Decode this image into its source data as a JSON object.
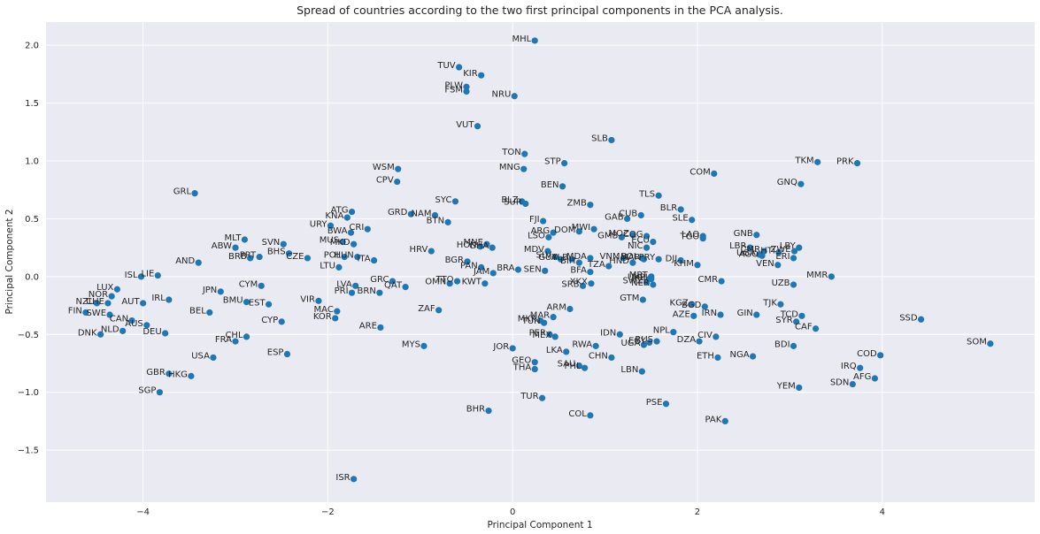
{
  "chart_data": {
    "type": "scatter",
    "title": "Spread of countries according to the two first principal components in the PCA analysis.",
    "xlabel": "Principal Component 1",
    "ylabel": "Principal Component 2",
    "xlim": [
      -5.05,
      5.65
    ],
    "ylim": [
      -1.95,
      2.2
    ],
    "xticks": [
      -4,
      -2,
      0,
      2,
      4
    ],
    "yticks": [
      -1.5,
      -1.0,
      -0.5,
      0.0,
      0.5,
      1.0,
      1.5,
      2.0
    ],
    "xtick_labels": [
      "−4",
      "−2",
      "0",
      "2",
      "4"
    ],
    "ytick_labels": [
      "−1.5",
      "−1.0",
      "−0.5",
      "0.0",
      "0.5",
      "1.0",
      "1.5",
      "2.0"
    ],
    "grid": true,
    "colors": {
      "background": "#eaeaf2",
      "grid": "#ffffff",
      "marker": "#1f77b4",
      "text": "#262626"
    },
    "points": [
      {
        "label": "MHL",
        "x": 0.24,
        "y": 2.04
      },
      {
        "label": "TUV",
        "x": -0.58,
        "y": 1.81
      },
      {
        "label": "KIR",
        "x": -0.34,
        "y": 1.74
      },
      {
        "label": "PLW",
        "x": -0.5,
        "y": 1.64
      },
      {
        "label": "FSM",
        "x": -0.5,
        "y": 1.6
      },
      {
        "label": "NRU",
        "x": 0.02,
        "y": 1.56
      },
      {
        "label": "VUT",
        "x": -0.38,
        "y": 1.3
      },
      {
        "label": "SLB",
        "x": 1.07,
        "y": 1.18
      },
      {
        "label": "TON",
        "x": 0.13,
        "y": 1.06
      },
      {
        "label": "STP",
        "x": 0.56,
        "y": 0.98
      },
      {
        "label": "MNG",
        "x": 0.12,
        "y": 0.93
      },
      {
        "label": "BEN",
        "x": 0.54,
        "y": 0.78
      },
      {
        "label": "WSM",
        "x": -1.24,
        "y": 0.93
      },
      {
        "label": "CPV",
        "x": -1.25,
        "y": 0.82
      },
      {
        "label": "GRL",
        "x": -3.44,
        "y": 0.72
      },
      {
        "label": "TKM",
        "x": 3.3,
        "y": 0.99
      },
      {
        "label": "PRK",
        "x": 3.73,
        "y": 0.98
      },
      {
        "label": "COM",
        "x": 2.18,
        "y": 0.89
      },
      {
        "label": "GNQ",
        "x": 3.12,
        "y": 0.8
      },
      {
        "label": "TLS",
        "x": 1.58,
        "y": 0.7
      },
      {
        "label": "BLR",
        "x": 1.82,
        "y": 0.58
      },
      {
        "label": "SLE",
        "x": 1.94,
        "y": 0.49
      },
      {
        "label": "CUB",
        "x": 1.39,
        "y": 0.53
      },
      {
        "label": "GAB",
        "x": 1.24,
        "y": 0.5
      },
      {
        "label": "ZMB",
        "x": 0.84,
        "y": 0.62
      },
      {
        "label": "SYC",
        "x": -0.62,
        "y": 0.65
      },
      {
        "label": "BLZ",
        "x": 0.1,
        "y": 0.65
      },
      {
        "label": "SUR",
        "x": 0.14,
        "y": 0.63
      },
      {
        "label": "GRD",
        "x": -1.1,
        "y": 0.54
      },
      {
        "label": "NAM",
        "x": -0.84,
        "y": 0.53
      },
      {
        "label": "BTN",
        "x": -0.7,
        "y": 0.47
      },
      {
        "label": "FJI",
        "x": 0.33,
        "y": 0.48
      },
      {
        "label": "MWI",
        "x": 0.88,
        "y": 0.41
      },
      {
        "label": "DOM",
        "x": 0.72,
        "y": 0.39
      },
      {
        "label": "ARG",
        "x": 0.44,
        "y": 0.38
      },
      {
        "label": "LSO",
        "x": 0.39,
        "y": 0.34
      },
      {
        "label": "MOZ",
        "x": 1.3,
        "y": 0.36
      },
      {
        "label": "COG",
        "x": 1.45,
        "y": 0.35
      },
      {
        "label": "GMB",
        "x": 1.18,
        "y": 0.34
      },
      {
        "label": "ECU",
        "x": 1.52,
        "y": 0.3
      },
      {
        "label": "LAO",
        "x": 2.06,
        "y": 0.35
      },
      {
        "label": "TGO",
        "x": 2.06,
        "y": 0.33
      },
      {
        "label": "GNB",
        "x": 2.64,
        "y": 0.36
      },
      {
        "label": "NIC",
        "x": 1.45,
        "y": 0.25
      },
      {
        "label": "PRY",
        "x": 1.58,
        "y": 0.15
      },
      {
        "label": "LBR",
        "x": 2.57,
        "y": 0.25
      },
      {
        "label": "CMR",
        "x": 2.72,
        "y": 0.22
      },
      {
        "label": "HTI",
        "x": 2.88,
        "y": 0.21
      },
      {
        "label": "AGO",
        "x": 2.7,
        "y": 0.18
      },
      {
        "label": "UGA",
        "x": 2.67,
        "y": 0.19
      },
      {
        "label": "LBY",
        "x": 3.1,
        "y": 0.25
      },
      {
        "label": "ZWE",
        "x": 3.05,
        "y": 0.22
      },
      {
        "label": "ERI",
        "x": 3.04,
        "y": 0.16
      },
      {
        "label": "VEN",
        "x": 2.87,
        "y": 0.1
      },
      {
        "label": "KHM",
        "x": 2.0,
        "y": 0.1
      },
      {
        "label": "DJI",
        "x": 1.82,
        "y": 0.14
      },
      {
        "label": "BOL",
        "x": 1.4,
        "y": 0.16
      },
      {
        "label": "MAR",
        "x": 1.42,
        "y": 0.15
      },
      {
        "label": "HND",
        "x": 1.3,
        "y": 0.12
      },
      {
        "label": "TZA",
        "x": 1.04,
        "y": 0.09
      },
      {
        "label": "VNM",
        "x": 1.2,
        "y": 0.16
      },
      {
        "label": "MDA",
        "x": 0.84,
        "y": 0.16
      },
      {
        "label": "BIH",
        "x": 0.72,
        "y": 0.12
      },
      {
        "label": "BFA",
        "x": 0.84,
        "y": 0.04
      },
      {
        "label": "MDV",
        "x": 0.38,
        "y": 0.22
      },
      {
        "label": "SLV",
        "x": 0.46,
        "y": 0.17
      },
      {
        "label": "ALB",
        "x": 0.64,
        "y": 0.15
      },
      {
        "label": "GUY",
        "x": 0.52,
        "y": 0.15
      },
      {
        "label": "GHA",
        "x": -0.22,
        "y": 0.25
      },
      {
        "label": "MNE",
        "x": -0.28,
        "y": 0.28
      },
      {
        "label": "HON",
        "x": -0.35,
        "y": 0.26
      },
      {
        "label": "HRV",
        "x": -0.88,
        "y": 0.22
      },
      {
        "label": "BGR",
        "x": -0.49,
        "y": 0.13
      },
      {
        "label": "PAN",
        "x": -0.34,
        "y": 0.08
      },
      {
        "label": "JAM",
        "x": -0.21,
        "y": 0.03
      },
      {
        "label": "BRA",
        "x": 0.06,
        "y": 0.06
      },
      {
        "label": "SEN",
        "x": 0.35,
        "y": 0.05
      },
      {
        "label": "XKX",
        "x": 0.85,
        "y": -0.06
      },
      {
        "label": "SRB",
        "x": 0.76,
        "y": -0.08
      },
      {
        "label": "SWZ",
        "x": 1.45,
        "y": -0.05
      },
      {
        "label": "NER",
        "x": 1.52,
        "y": -0.07
      },
      {
        "label": "UKR",
        "x": 1.48,
        "y": -0.02
      },
      {
        "label": "MRT",
        "x": 1.5,
        "y": 0.0
      },
      {
        "label": "MLI",
        "x": 1.5,
        "y": -0.02
      },
      {
        "label": "CMR",
        "x": 2.26,
        "y": -0.04
      },
      {
        "label": "UZB",
        "x": 3.04,
        "y": -0.07
      },
      {
        "label": "MMR",
        "x": 3.45,
        "y": 0.0
      },
      {
        "label": "GTM",
        "x": 1.41,
        "y": -0.2
      },
      {
        "label": "KGZ",
        "x": 1.94,
        "y": -0.24
      },
      {
        "label": "BGD",
        "x": 2.08,
        "y": -0.26
      },
      {
        "label": "AZE",
        "x": 1.96,
        "y": -0.34
      },
      {
        "label": "IRN",
        "x": 2.25,
        "y": -0.33
      },
      {
        "label": "GIN",
        "x": 2.64,
        "y": -0.33
      },
      {
        "label": "TJK",
        "x": 2.9,
        "y": -0.24
      },
      {
        "label": "TCD",
        "x": 3.13,
        "y": -0.34
      },
      {
        "label": "SYR",
        "x": 3.07,
        "y": -0.39
      },
      {
        "label": "CAF",
        "x": 3.28,
        "y": -0.45
      },
      {
        "label": "SSD",
        "x": 4.42,
        "y": -0.37
      },
      {
        "label": "SOM",
        "x": 5.17,
        "y": -0.58
      },
      {
        "label": "MLT",
        "x": -2.9,
        "y": 0.32
      },
      {
        "label": "ABW",
        "x": -3.0,
        "y": 0.25
      },
      {
        "label": "BRB",
        "x": -2.84,
        "y": 0.16
      },
      {
        "label": "PRT",
        "x": -2.74,
        "y": 0.17
      },
      {
        "label": "SVN",
        "x": -2.48,
        "y": 0.28
      },
      {
        "label": "BHS",
        "x": -2.42,
        "y": 0.2
      },
      {
        "label": "CZE",
        "x": -2.22,
        "y": 0.16
      },
      {
        "label": "AND",
        "x": -3.4,
        "y": 0.12
      },
      {
        "label": "CRI",
        "x": -1.57,
        "y": 0.41
      },
      {
        "label": "BWA",
        "x": -1.75,
        "y": 0.38
      },
      {
        "label": "URY",
        "x": -1.97,
        "y": 0.44
      },
      {
        "label": "MUS",
        "x": -1.84,
        "y": 0.3
      },
      {
        "label": "MKD",
        "x": -1.72,
        "y": 0.28
      },
      {
        "label": "POL",
        "x": -1.82,
        "y": 0.17
      },
      {
        "label": "HUN",
        "x": -1.68,
        "y": 0.17
      },
      {
        "label": "ITA",
        "x": -1.5,
        "y": 0.14
      },
      {
        "label": "LTU",
        "x": -1.88,
        "y": 0.08
      },
      {
        "label": "KNA",
        "x": -1.79,
        "y": 0.51
      },
      {
        "label": "ATG",
        "x": -1.74,
        "y": 0.56
      },
      {
        "label": "MYS",
        "x": -0.96,
        "y": -0.6
      },
      {
        "label": "ISL",
        "x": -4.02,
        "y": 0.0
      },
      {
        "label": "LIE",
        "x": -3.84,
        "y": 0.01
      },
      {
        "label": "LUX",
        "x": -4.28,
        "y": -0.11
      },
      {
        "label": "NOR",
        "x": -4.34,
        "y": -0.17
      },
      {
        "label": "NZL",
        "x": -4.5,
        "y": -0.23
      },
      {
        "label": "CHE",
        "x": -4.38,
        "y": -0.23
      },
      {
        "label": "AUT",
        "x": -4.0,
        "y": -0.23
      },
      {
        "label": "IRL",
        "x": -3.72,
        "y": -0.2
      },
      {
        "label": "FIN",
        "x": -4.62,
        "y": -0.31
      },
      {
        "label": "SWE",
        "x": -4.36,
        "y": -0.33
      },
      {
        "label": "CAN",
        "x": -4.12,
        "y": -0.38
      },
      {
        "label": "AUS",
        "x": -3.96,
        "y": -0.42
      },
      {
        "label": "DEU",
        "x": -3.76,
        "y": -0.49
      },
      {
        "label": "DNK",
        "x": -4.46,
        "y": -0.5
      },
      {
        "label": "NLD",
        "x": -4.22,
        "y": -0.47
      },
      {
        "label": "GBR",
        "x": -3.72,
        "y": -0.84
      },
      {
        "label": "HKG",
        "x": -3.48,
        "y": -0.86
      },
      {
        "label": "SGP",
        "x": -3.82,
        "y": -1.0
      },
      {
        "label": "USA",
        "x": -3.24,
        "y": -0.7
      },
      {
        "label": "FRA",
        "x": -3.0,
        "y": -0.56
      },
      {
        "label": "CHL",
        "x": -2.88,
        "y": -0.52
      },
      {
        "label": "ESP",
        "x": -2.44,
        "y": -0.67
      },
      {
        "label": "BEL",
        "x": -3.28,
        "y": -0.31
      },
      {
        "label": "JPN",
        "x": -3.16,
        "y": -0.13
      },
      {
        "label": "CYM",
        "x": -2.72,
        "y": -0.08
      },
      {
        "label": "BMU",
        "x": -2.88,
        "y": -0.22
      },
      {
        "label": "EST",
        "x": -2.64,
        "y": -0.24
      },
      {
        "label": "CYP",
        "x": -2.5,
        "y": -0.39
      },
      {
        "label": "VIR",
        "x": -2.1,
        "y": -0.21
      },
      {
        "label": "MAC",
        "x": -1.9,
        "y": -0.3
      },
      {
        "label": "KOR",
        "x": -1.92,
        "y": -0.36
      },
      {
        "label": "PRI",
        "x": -1.74,
        "y": -0.14
      },
      {
        "label": "LVA",
        "x": -1.7,
        "y": -0.08
      },
      {
        "label": "BRN",
        "x": -1.44,
        "y": -0.14
      },
      {
        "label": "GRC",
        "x": -1.3,
        "y": -0.04
      },
      {
        "label": "QAT",
        "x": -1.16,
        "y": -0.09
      },
      {
        "label": "ARE",
        "x": -1.43,
        "y": -0.44
      },
      {
        "label": "ZAF",
        "x": -0.8,
        "y": -0.29
      },
      {
        "label": "OMN",
        "x": -0.68,
        "y": -0.06
      },
      {
        "label": "TTO",
        "x": -0.6,
        "y": -0.04
      },
      {
        "label": "KWT",
        "x": -0.3,
        "y": -0.06
      },
      {
        "label": "ISR",
        "x": -1.72,
        "y": -1.75
      },
      {
        "label": "BHR",
        "x": -0.26,
        "y": -1.16
      },
      {
        "label": "JOR",
        "x": 0.0,
        "y": -0.62
      },
      {
        "label": "TUR",
        "x": 0.32,
        "y": -1.05
      },
      {
        "label": "COL",
        "x": 0.84,
        "y": -1.2
      },
      {
        "label": "GEO",
        "x": 0.24,
        "y": -0.74
      },
      {
        "label": "THA",
        "x": 0.24,
        "y": -0.8
      },
      {
        "label": "SAU",
        "x": 0.72,
        "y": -0.77
      },
      {
        "label": "PHL",
        "x": 0.78,
        "y": -0.79
      },
      {
        "label": "LKA",
        "x": 0.58,
        "y": -0.65
      },
      {
        "label": "CHN",
        "x": 1.07,
        "y": -0.7
      },
      {
        "label": "RWA",
        "x": 0.9,
        "y": -0.6
      },
      {
        "label": "IDN",
        "x": 1.16,
        "y": -0.5
      },
      {
        "label": "UGA",
        "x": 1.42,
        "y": -0.59
      },
      {
        "label": "EGY",
        "x": 1.48,
        "y": -0.57
      },
      {
        "label": "RUS",
        "x": 1.56,
        "y": -0.56
      },
      {
        "label": "NPL",
        "x": 1.74,
        "y": -0.48
      },
      {
        "label": "DZA",
        "x": 2.02,
        "y": -0.56
      },
      {
        "label": "CIV",
        "x": 2.2,
        "y": -0.52
      },
      {
        "label": "LBN",
        "x": 1.4,
        "y": -0.82
      },
      {
        "label": "ETH",
        "x": 2.22,
        "y": -0.7
      },
      {
        "label": "NGA",
        "x": 2.6,
        "y": -0.69
      },
      {
        "label": "BDI",
        "x": 3.04,
        "y": -0.6
      },
      {
        "label": "PSE",
        "x": 1.66,
        "y": -1.1
      },
      {
        "label": "PAK",
        "x": 2.3,
        "y": -1.25
      },
      {
        "label": "YEM",
        "x": 3.1,
        "y": -0.96
      },
      {
        "label": "IRQ",
        "x": 3.76,
        "y": -0.79
      },
      {
        "label": "SDN",
        "x": 3.68,
        "y": -0.93
      },
      {
        "label": "AFG",
        "x": 3.92,
        "y": -0.88
      },
      {
        "label": "COD",
        "x": 3.98,
        "y": -0.68
      },
      {
        "label": "MKK",
        "x": 0.3,
        "y": -0.38
      },
      {
        "label": "TUN",
        "x": 0.34,
        "y": -0.4
      },
      {
        "label": "ARM",
        "x": 0.62,
        "y": -0.28
      },
      {
        "label": "MAR",
        "x": 0.44,
        "y": -0.35
      },
      {
        "label": "PER",
        "x": 0.4,
        "y": -0.5
      },
      {
        "label": "MEX",
        "x": 0.46,
        "y": -0.52
      }
    ]
  }
}
